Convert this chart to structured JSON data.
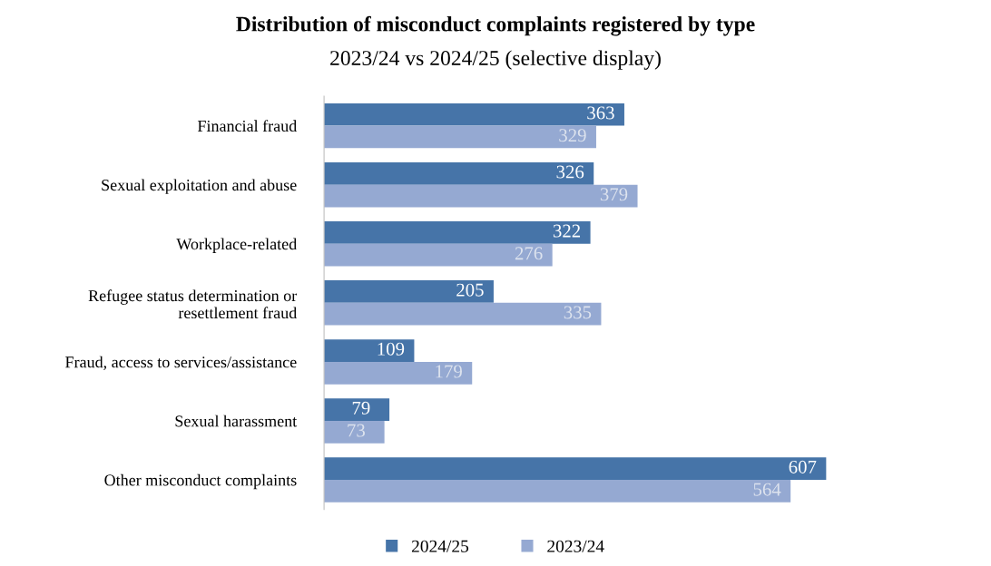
{
  "chart_data": {
    "type": "bar",
    "orientation": "horizontal",
    "title": "Distribution of misconduct complaints registered by type",
    "subtitle": "2023/24 vs 2024/25 (selective display)",
    "categories": [
      "Financial fraud",
      "Sexual exploitation and abuse",
      "Workplace-related",
      "Refugee status determination or\nresettlement fraud",
      "Fraud, access to services/assistance",
      "Sexual harassment",
      "Other misconduct complaints"
    ],
    "series": [
      {
        "name": "2024/25",
        "color": "#4674a8",
        "values": [
          363,
          326,
          322,
          205,
          109,
          79,
          607
        ]
      },
      {
        "name": "2023/24",
        "color": "#95a9d2",
        "values": [
          329,
          379,
          276,
          335,
          179,
          73,
          564
        ]
      }
    ],
    "data_labels": true,
    "tick_labels": "y",
    "grid": false,
    "legend": "bottom"
  }
}
